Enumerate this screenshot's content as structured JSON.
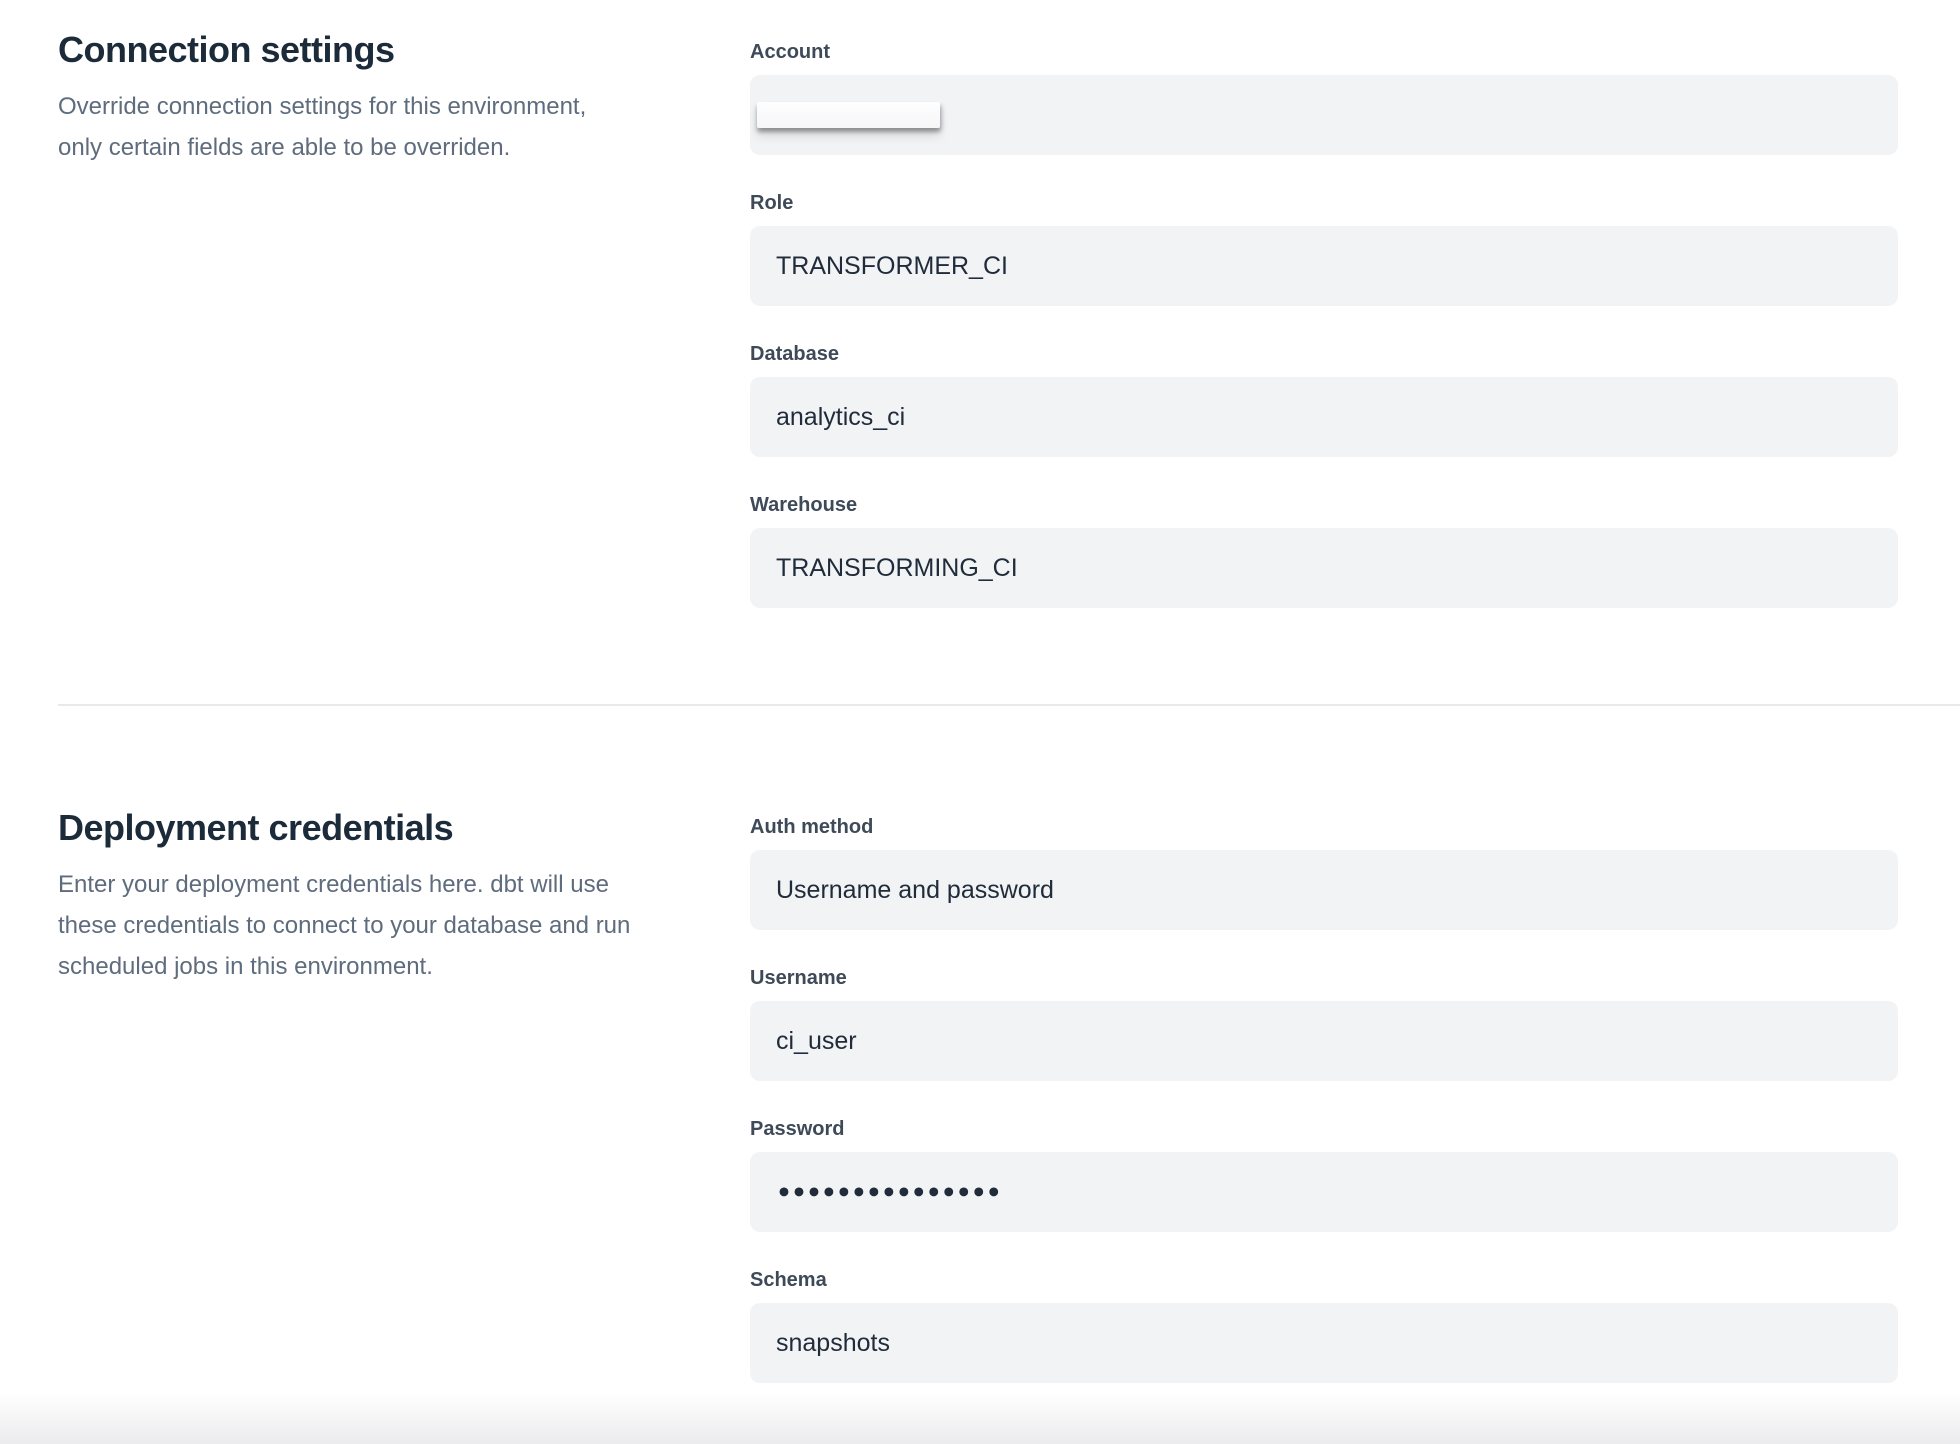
{
  "sections": [
    {
      "title": "Connection settings",
      "description_lines": [
        "Override connection settings for this environment,",
        "only certain fields are able to be overriden."
      ],
      "fields": [
        {
          "label": "Account",
          "value": "",
          "redacted": true
        },
        {
          "label": "Role",
          "value": "TRANSFORMER_CI"
        },
        {
          "label": "Database",
          "value": "analytics_ci"
        },
        {
          "label": "Warehouse",
          "value": "TRANSFORMING_CI"
        }
      ]
    },
    {
      "title": "Deployment credentials",
      "description_lines": [
        "Enter your deployment credentials here. dbt will use",
        "these credentials to connect to your database and run",
        "scheduled jobs in this environment."
      ],
      "fields": [
        {
          "label": "Auth method",
          "value": "Username and password"
        },
        {
          "label": "Username",
          "value": "ci_user"
        },
        {
          "label": "Password",
          "value": "•••••••••••••••",
          "masked": true
        },
        {
          "label": "Schema",
          "value": "snapshots"
        }
      ]
    }
  ],
  "colors": {
    "page_background": "#ffffff",
    "heading_text": "#1c2b3a",
    "label_text": "#3e4a58",
    "value_text": "#212c3a",
    "description_text": "#5e6c7d",
    "field_background": "#f2f3f5",
    "divider": "#e8e9eb",
    "bottom_fade": "#ebebed",
    "redaction_sticker": "#fdfdfe"
  }
}
